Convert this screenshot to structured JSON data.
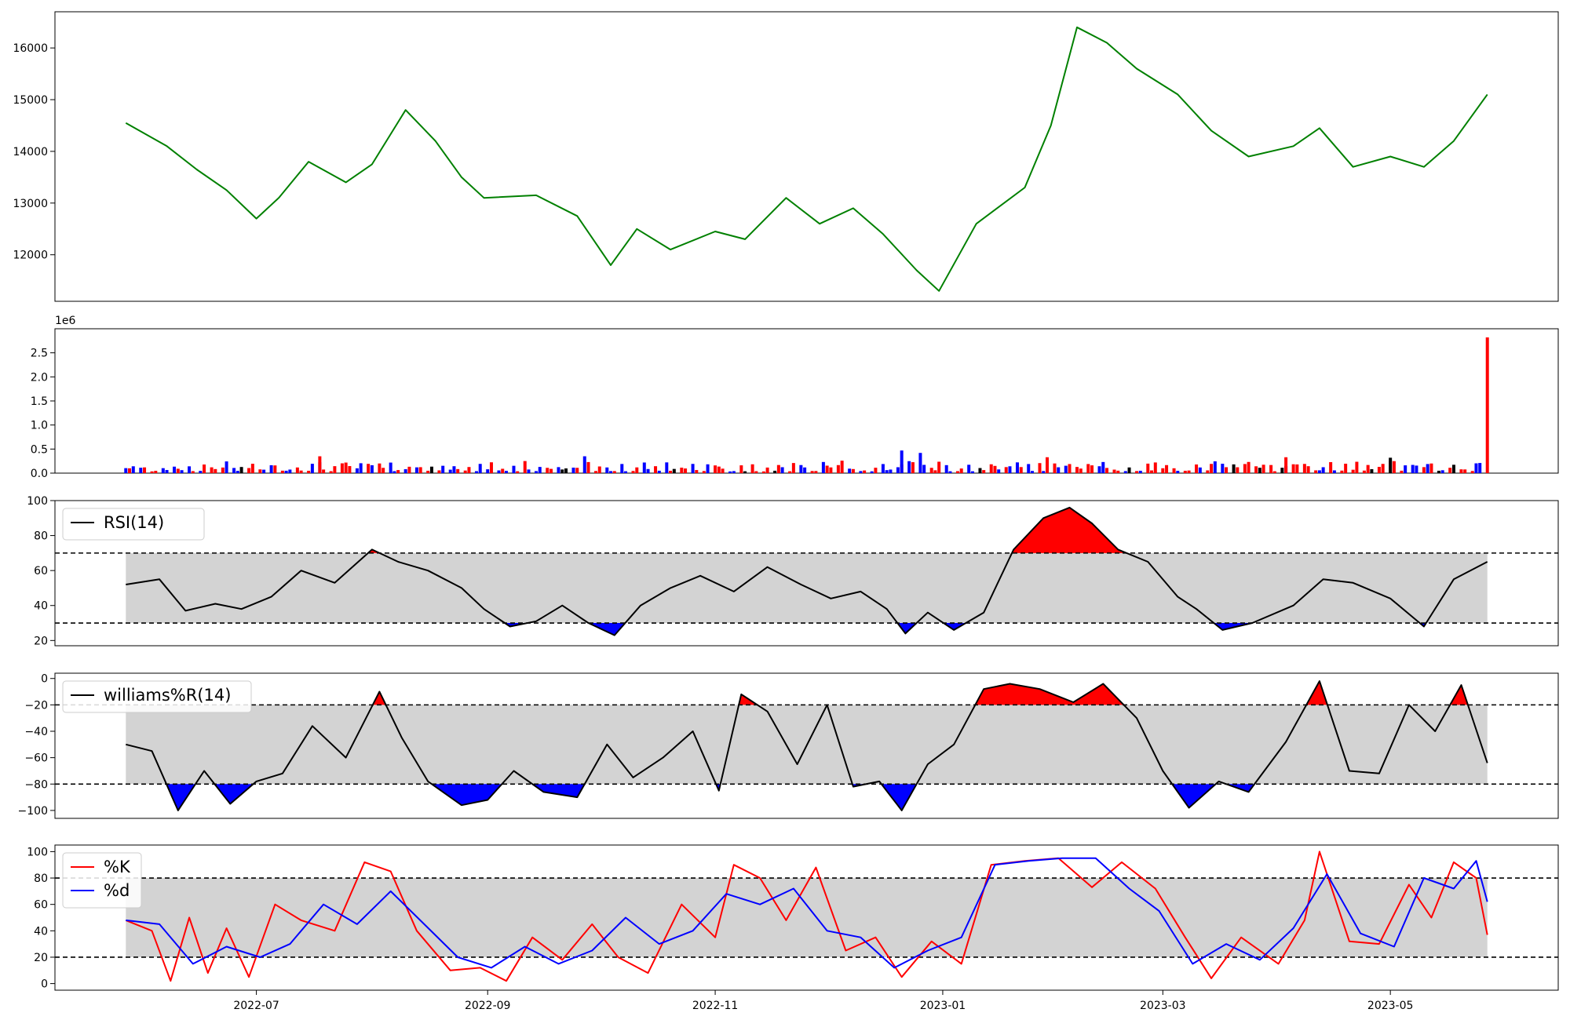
{
  "chart_data": [
    {
      "panel": "price",
      "type": "line",
      "color": "#008000",
      "ylim": [
        11100,
        16700
      ],
      "yticks": [
        "12000",
        "13000",
        "14000",
        "15000",
        "16000"
      ],
      "xlim": [
        "2022-05-08",
        "2023-06-15"
      ],
      "series": [
        {
          "x": [
            "2022-05-27",
            "2022-06-07",
            "2022-06-15",
            "2022-06-23",
            "2022-07-01",
            "2022-07-07",
            "2022-07-15",
            "2022-07-25",
            "2022-08-01",
            "2022-08-10",
            "2022-08-18",
            "2022-08-25",
            "2022-08-31",
            "2022-09-14",
            "2022-09-25",
            "2022-10-04",
            "2022-10-11",
            "2022-10-20",
            "2022-11-01",
            "2022-11-09",
            "2022-11-20",
            "2022-11-29",
            "2022-12-08",
            "2022-12-16",
            "2022-12-25",
            "2022-12-31",
            "2023-01-10",
            "2023-01-23",
            "2023-01-30",
            "2023-02-06",
            "2023-02-14",
            "2023-02-22",
            "2023-03-05",
            "2023-03-14",
            "2023-03-24",
            "2023-04-05",
            "2023-04-12",
            "2023-04-21",
            "2023-05-01",
            "2023-05-10",
            "2023-05-18",
            "2023-05-27"
          ],
          "y": [
            14550,
            14100,
            13650,
            13250,
            12700,
            13100,
            13800,
            13400,
            13750,
            14800,
            14200,
            13500,
            13100,
            13150,
            12750,
            11800,
            12500,
            12100,
            12450,
            12300,
            13100,
            12600,
            12900,
            12400,
            11700,
            11300,
            12600,
            13300,
            14500,
            16400,
            16100,
            15600,
            15100,
            14400,
            13900,
            14100,
            14450,
            13700,
            13900,
            13700,
            14200,
            15100
          ]
        }
      ]
    },
    {
      "panel": "volume",
      "type": "bar",
      "ylim": [
        0,
        3000000
      ],
      "yticks": [
        "0.0",
        "0.5",
        "1.0",
        "1.5",
        "2.0",
        "2.5"
      ],
      "offset_label": "1e6",
      "colors": {
        "up": "#ff0000",
        "down": "#0000ff",
        "flat": "#000000"
      },
      "x_range": [
        "2022-05-27",
        "2023-05-27"
      ],
      "typical_values": [
        0.05,
        0.1,
        0.15,
        0.2
      ],
      "notable_values": [
        {
          "x": "2022-07-18",
          "value": 0.35,
          "color": "#ff0000"
        },
        {
          "x": "2022-09-27",
          "value": 0.35,
          "color": "#0000ff"
        },
        {
          "x": "2022-12-21",
          "value": 0.47,
          "color": "#0000ff"
        },
        {
          "x": "2022-12-26",
          "value": 0.42,
          "color": "#0000ff"
        },
        {
          "x": "2023-01-29",
          "value": 0.33,
          "color": "#ff0000"
        },
        {
          "x": "2023-04-03",
          "value": 0.33,
          "color": "#ff0000"
        },
        {
          "x": "2023-05-01",
          "value": 0.32,
          "color": "#000000"
        },
        {
          "x": "2023-05-27",
          "value": 2.82,
          "color": "#ff0000"
        }
      ],
      "value_unit": "1e6"
    },
    {
      "panel": "rsi",
      "type": "line",
      "legend": "RSI(14)",
      "legend_position": "top-left",
      "ylim": [
        17,
        100
      ],
      "yticks": [
        "20",
        "40",
        "60",
        "80",
        "100"
      ],
      "thresholds": [
        30,
        70
      ],
      "overbought_fill": "#ff0000",
      "oversold_fill": "#0000ff",
      "band_fill": "#d3d3d3",
      "series": [
        {
          "x": [
            "2022-05-27",
            "2022-06-05",
            "2022-06-12",
            "2022-06-20",
            "2022-06-27",
            "2022-07-05",
            "2022-07-13",
            "2022-07-22",
            "2022-08-01",
            "2022-08-08",
            "2022-08-16",
            "2022-08-25",
            "2022-08-31",
            "2022-09-07",
            "2022-09-14",
            "2022-09-21",
            "2022-09-28",
            "2022-10-05",
            "2022-10-12",
            "2022-10-20",
            "2022-10-28",
            "2022-11-06",
            "2022-11-15",
            "2022-11-24",
            "2022-12-02",
            "2022-12-10",
            "2022-12-17",
            "2022-12-22",
            "2022-12-28",
            "2023-01-04",
            "2023-01-12",
            "2023-01-20",
            "2023-01-28",
            "2023-02-04",
            "2023-02-10",
            "2023-02-17",
            "2023-02-25",
            "2023-03-05",
            "2023-03-10",
            "2023-03-17",
            "2023-03-25",
            "2023-04-05",
            "2023-04-13",
            "2023-04-21",
            "2023-05-01",
            "2023-05-10",
            "2023-05-18",
            "2023-05-27"
          ],
          "y": [
            52,
            55,
            37,
            41,
            38,
            45,
            60,
            53,
            72,
            65,
            60,
            50,
            38,
            28,
            31,
            40,
            30,
            23,
            40,
            50,
            57,
            48,
            62,
            52,
            44,
            48,
            38,
            24,
            36,
            26,
            36,
            72,
            90,
            96,
            87,
            72,
            65,
            45,
            38,
            26,
            30,
            40,
            55,
            53,
            44,
            28,
            55,
            65
          ]
        }
      ]
    },
    {
      "panel": "williams",
      "type": "line",
      "legend": "williams%R(14)",
      "legend_position": "top-left",
      "ylim": [
        -106,
        4
      ],
      "yticks": [
        "−100",
        "−80",
        "−60",
        "−40",
        "−20",
        "0"
      ],
      "thresholds": [
        -80,
        -20
      ],
      "overbought_fill": "#ff0000",
      "oversold_fill": "#0000ff",
      "band_fill": "#d3d3d3",
      "series": [
        {
          "x": [
            "2022-05-27",
            "2022-06-03",
            "2022-06-10",
            "2022-06-17",
            "2022-06-24",
            "2022-07-01",
            "2022-07-08",
            "2022-07-16",
            "2022-07-25",
            "2022-08-03",
            "2022-08-09",
            "2022-08-16",
            "2022-08-25",
            "2022-09-01",
            "2022-09-08",
            "2022-09-16",
            "2022-09-25",
            "2022-10-03",
            "2022-10-10",
            "2022-10-18",
            "2022-10-26",
            "2022-11-02",
            "2022-11-08",
            "2022-11-15",
            "2022-11-23",
            "2022-12-01",
            "2022-12-08",
            "2022-12-15",
            "2022-12-21",
            "2022-12-28",
            "2023-01-04",
            "2023-01-12",
            "2023-01-19",
            "2023-01-27",
            "2023-02-05",
            "2023-02-13",
            "2023-02-22",
            "2023-03-01",
            "2023-03-08",
            "2023-03-16",
            "2023-03-24",
            "2023-04-03",
            "2023-04-12",
            "2023-04-20",
            "2023-04-28",
            "2023-05-06",
            "2023-05-13",
            "2023-05-20",
            "2023-05-27"
          ],
          "y": [
            -50,
            -55,
            -100,
            -70,
            -95,
            -78,
            -72,
            -36,
            -60,
            -10,
            -45,
            -78,
            -96,
            -92,
            -70,
            -86,
            -90,
            -50,
            -75,
            -60,
            -40,
            -85,
            -12,
            -25,
            -65,
            -20,
            -82,
            -78,
            -100,
            -65,
            -50,
            -8,
            -4,
            -8,
            -18,
            -4,
            -30,
            -70,
            -98,
            -78,
            -86,
            -48,
            -2,
            -70,
            -72,
            -20,
            -40,
            -5,
            -64
          ]
        }
      ]
    },
    {
      "panel": "stochastic",
      "type": "line",
      "legend_position": "top-left",
      "ylim": [
        -5,
        105
      ],
      "yticks": [
        "0",
        "20",
        "40",
        "60",
        "80",
        "100"
      ],
      "thresholds": [
        20,
        80
      ],
      "band_fill": "#d3d3d3",
      "series": [
        {
          "name": "%K",
          "color": "#ff0000",
          "x": [
            "2022-05-27",
            "2022-06-03",
            "2022-06-08",
            "2022-06-13",
            "2022-06-18",
            "2022-06-23",
            "2022-06-29",
            "2022-07-06",
            "2022-07-13",
            "2022-07-22",
            "2022-07-30",
            "2022-08-06",
            "2022-08-13",
            "2022-08-22",
            "2022-08-30",
            "2022-09-06",
            "2022-09-13",
            "2022-09-21",
            "2022-09-29",
            "2022-10-06",
            "2022-10-14",
            "2022-10-23",
            "2022-11-01",
            "2022-11-06",
            "2022-11-13",
            "2022-11-20",
            "2022-11-28",
            "2022-12-06",
            "2022-12-14",
            "2022-12-21",
            "2022-12-29",
            "2023-01-06",
            "2023-01-14",
            "2023-01-23",
            "2023-02-01",
            "2023-02-10",
            "2023-02-18",
            "2023-02-27",
            "2023-03-07",
            "2023-03-14",
            "2023-03-22",
            "2023-04-01",
            "2023-04-08",
            "2023-04-12",
            "2023-04-20",
            "2023-04-28",
            "2023-05-06",
            "2023-05-12",
            "2023-05-18",
            "2023-05-24",
            "2023-05-27"
          ],
          "y": [
            48,
            40,
            2,
            50,
            8,
            42,
            5,
            60,
            48,
            40,
            92,
            85,
            40,
            10,
            12,
            2,
            35,
            18,
            45,
            20,
            8,
            60,
            35,
            90,
            80,
            48,
            88,
            25,
            35,
            5,
            32,
            15,
            90,
            93,
            95,
            73,
            92,
            72,
            35,
            4,
            35,
            15,
            48,
            100,
            32,
            30,
            75,
            50,
            92,
            80,
            37
          ]
        },
        {
          "name": "%d",
          "color": "#0000ff",
          "x": [
            "2022-05-27",
            "2022-06-05",
            "2022-06-14",
            "2022-06-23",
            "2022-07-02",
            "2022-07-10",
            "2022-07-19",
            "2022-07-28",
            "2022-08-06",
            "2022-08-15",
            "2022-08-24",
            "2022-09-02",
            "2022-09-11",
            "2022-09-20",
            "2022-09-29",
            "2022-10-08",
            "2022-10-17",
            "2022-10-26",
            "2022-11-04",
            "2022-11-13",
            "2022-11-22",
            "2022-12-01",
            "2022-12-10",
            "2022-12-19",
            "2022-12-28",
            "2023-01-06",
            "2023-01-15",
            "2023-01-24",
            "2023-02-02",
            "2023-02-11",
            "2023-02-20",
            "2023-02-28",
            "2023-03-09",
            "2023-03-18",
            "2023-03-27",
            "2023-04-05",
            "2023-04-14",
            "2023-04-23",
            "2023-05-02",
            "2023-05-10",
            "2023-05-18",
            "2023-05-24",
            "2023-05-27"
          ],
          "y": [
            48,
            45,
            15,
            28,
            20,
            30,
            60,
            45,
            70,
            45,
            20,
            12,
            28,
            15,
            25,
            50,
            30,
            40,
            68,
            60,
            72,
            40,
            35,
            12,
            25,
            35,
            90,
            93,
            95,
            95,
            72,
            55,
            15,
            30,
            18,
            42,
            83,
            38,
            28,
            80,
            72,
            93,
            62
          ]
        }
      ]
    },
    {
      "panel": "shared_x_axis",
      "xticks": [
        "2022-07",
        "2022-09",
        "2022-11",
        "2023-01",
        "2023-03",
        "2023-05"
      ]
    }
  ]
}
